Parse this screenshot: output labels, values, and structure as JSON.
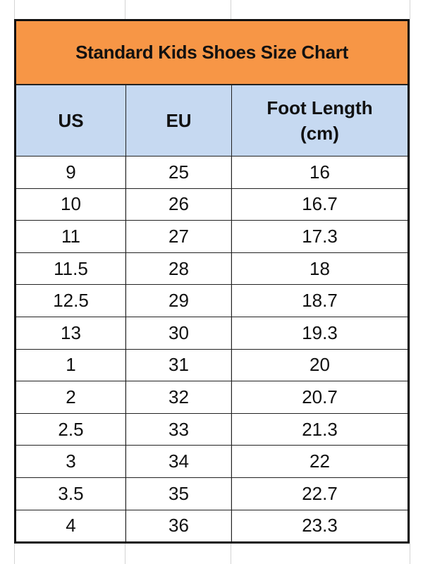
{
  "title": "Standard Kids Shoes Size Chart",
  "columns": [
    "US",
    "EU",
    "Foot Length",
    "(cm)"
  ],
  "rows": [
    [
      "9",
      "25",
      "16"
    ],
    [
      "10",
      "26",
      "16.7"
    ],
    [
      "11",
      "27",
      "17.3"
    ],
    [
      "11.5",
      "28",
      "18"
    ],
    [
      "12.5",
      "29",
      "18.7"
    ],
    [
      "13",
      "30",
      "19.3"
    ],
    [
      "1",
      "31",
      "20"
    ],
    [
      "2",
      "32",
      "20.7"
    ],
    [
      "2.5",
      "33",
      "21.3"
    ],
    [
      "3",
      "34",
      "22"
    ],
    [
      "3.5",
      "35",
      "22.7"
    ],
    [
      "4",
      "36",
      "23.3"
    ]
  ],
  "colors": {
    "title_bg": "#F79646",
    "header_bg": "#C6D9F1"
  }
}
